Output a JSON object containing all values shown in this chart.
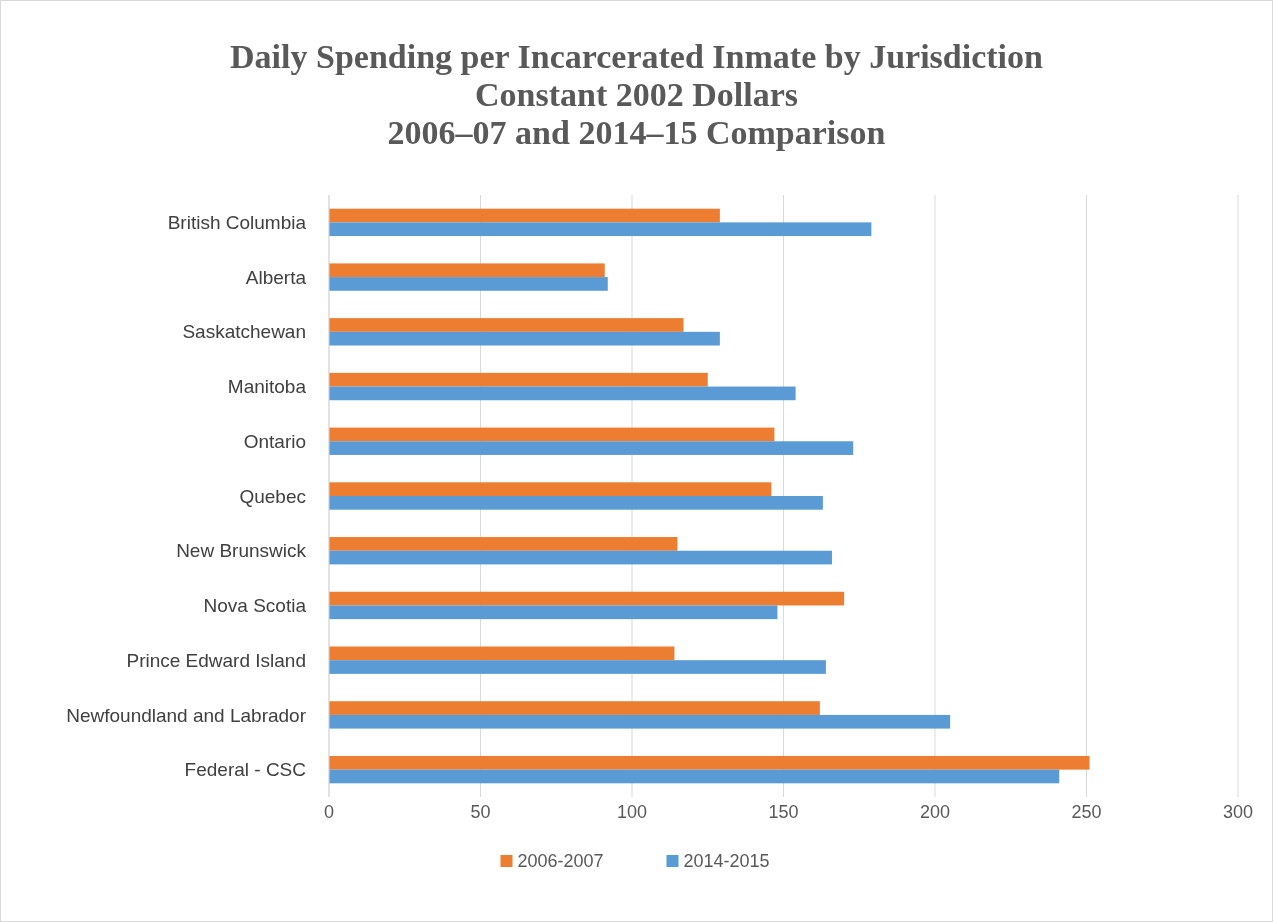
{
  "chart_data": {
    "type": "bar",
    "orientation": "horizontal",
    "title": "Daily Spending per Incarcerated Inmate by Jurisdiction\nConstant 2002 Dollars\n2006–07 and 2014–15 Comparison",
    "categories": [
      "British Columbia",
      "Alberta",
      "Saskatchewan",
      "Manitoba",
      "Ontario",
      "Quebec",
      "New Brunswick",
      "Nova Scotia",
      "Prince Edward Island",
      "Newfoundland and Labrador",
      "Federal - CSC"
    ],
    "series": [
      {
        "name": "2006-2007",
        "color": "#ed7d31",
        "values": [
          129,
          91,
          117,
          125,
          147,
          146,
          115,
          170,
          114,
          162,
          251
        ]
      },
      {
        "name": "2014-2015",
        "color": "#5b9bd5",
        "values": [
          179,
          92,
          129,
          154,
          173,
          163,
          166,
          148,
          164,
          205,
          241
        ]
      }
    ],
    "xlim": [
      0,
      300
    ],
    "xticks": [
      0,
      50,
      100,
      150,
      200,
      250,
      300
    ],
    "grid": "x",
    "legend": "bottom"
  }
}
